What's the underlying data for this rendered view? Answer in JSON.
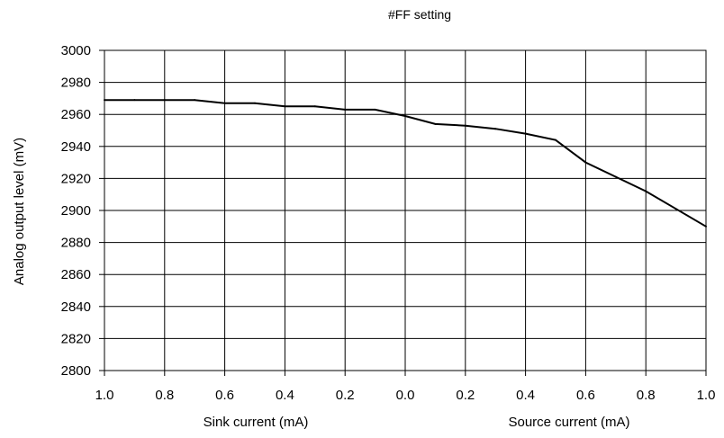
{
  "chart_data": {
    "type": "line",
    "title": "#FF setting",
    "ylabel": "Analog output level (mV)",
    "xlabel_left": "Sink current (mA)",
    "xlabel_right": "Source current (mA)",
    "x_tick_labels": [
      "1.0",
      "0.8",
      "0.6",
      "0.4",
      "0.2",
      "0.0",
      "0.2",
      "0.4",
      "0.6",
      "0.8",
      "1.0"
    ],
    "y_ticks": [
      2800,
      2820,
      2840,
      2860,
      2880,
      2900,
      2920,
      2940,
      2960,
      2980,
      3000
    ],
    "ylim": [
      2800,
      3000
    ],
    "grid": true,
    "x_axis_note": "signed current; negative = sink, positive = source",
    "xlim": [
      -1.0,
      1.0
    ],
    "series": [
      {
        "x": [
          -1.0,
          -0.9,
          -0.8,
          -0.7,
          -0.6,
          -0.5,
          -0.4,
          -0.3,
          -0.2,
          -0.1,
          0.0,
          0.1,
          0.2,
          0.3,
          0.4,
          0.5,
          0.6,
          0.7,
          0.8,
          0.9,
          1.0
        ],
        "values": [
          2969,
          2969,
          2969,
          2969,
          2967,
          2967,
          2965,
          2965,
          2963,
          2963,
          2959,
          2954,
          2953,
          2951,
          2948,
          2944,
          2930,
          2921,
          2912,
          2901,
          2890
        ]
      }
    ]
  }
}
